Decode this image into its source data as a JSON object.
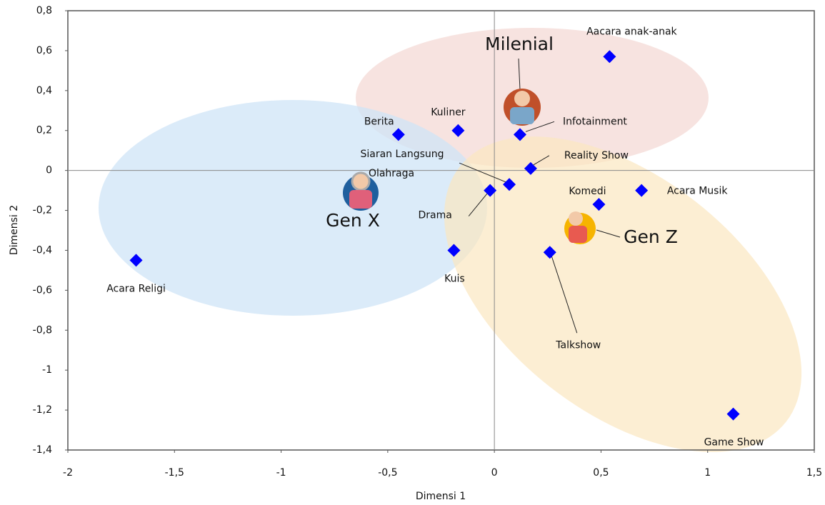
{
  "chart_data": {
    "type": "scatter",
    "x_label": "Dimensi 1",
    "y_label": "Dimensi 2",
    "labels": [
      "Aacara anak-anak",
      "Berita",
      "Kuliner",
      "Infotainment",
      "Reality Show",
      "Siaran Langsung",
      "Olahraga",
      "Drama",
      "Komedi",
      "Acara Musik",
      "Kuis",
      "Talkshow",
      "Acara Religi",
      "Game Show"
    ],
    "x": [
      0.54,
      -0.45,
      -0.17,
      0.12,
      0.17,
      0.07,
      -0.62,
      -0.02,
      0.49,
      0.69,
      -0.19,
      0.26,
      -1.68,
      1.12
    ],
    "values": [
      0.57,
      0.18,
      0.2,
      0.18,
      0.01,
      -0.07,
      -0.08,
      -0.1,
      -0.17,
      -0.1,
      -0.4,
      -0.41,
      -0.45,
      -1.22
    ],
    "color": "#0000ff",
    "groups": [
      "Milenial",
      "Gen X",
      "Gen Z"
    ],
    "xlim": [
      -2,
      1.5
    ],
    "xticks": [
      -2,
      {
        "value": -1.5,
        "label": "-1,5"
      },
      -1,
      {
        "value": -0.5,
        "label": "-0,5"
      },
      0,
      {
        "value": 0.5,
        "label": "0,5"
      },
      1,
      {
        "value": 1.5,
        "label": "1,5"
      }
    ],
    "ylim": [
      -1.4,
      0.8
    ],
    "yticks": [
      {
        "value": -1.4,
        "label": "-1,4"
      },
      {
        "value": -1.2,
        "label": "-1,2"
      },
      -1,
      {
        "value": -0.8,
        "label": "-0,8"
      },
      {
        "value": -0.6,
        "label": "-0,6"
      },
      {
        "value": -0.4,
        "label": "-0,4"
      },
      {
        "value": -0.2,
        "label": "-0,2"
      },
      0,
      {
        "value": 0.2,
        "label": "0,2"
      },
      {
        "value": 0.4,
        "label": "0,4"
      },
      {
        "value": 0.6,
        "label": "0,6"
      },
      {
        "value": 0.8,
        "label": "0,8"
      }
    ]
  }
}
